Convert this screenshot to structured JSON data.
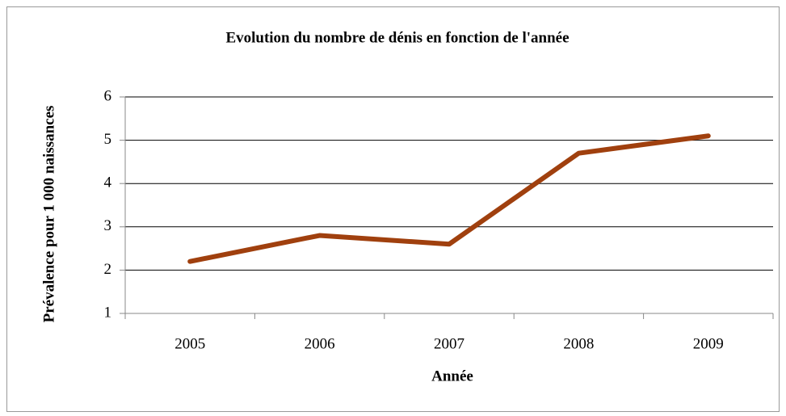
{
  "chart_data": {
    "type": "line",
    "title": "Evolution du nombre de dénis en fonction de l'année",
    "x_label": "Année",
    "y_label": "Prévalence pour 1 000 naissances",
    "categories": [
      "2005",
      "2006",
      "2007",
      "2008",
      "2009"
    ],
    "series": [
      {
        "name": "Prévalence",
        "color": "#a0400e",
        "values": [
          2.2,
          2.8,
          2.6,
          4.7,
          5.1
        ]
      }
    ],
    "ylim": [
      1,
      6
    ],
    "yticks": [
      1,
      2,
      3,
      4,
      5,
      6
    ],
    "grid": true
  }
}
